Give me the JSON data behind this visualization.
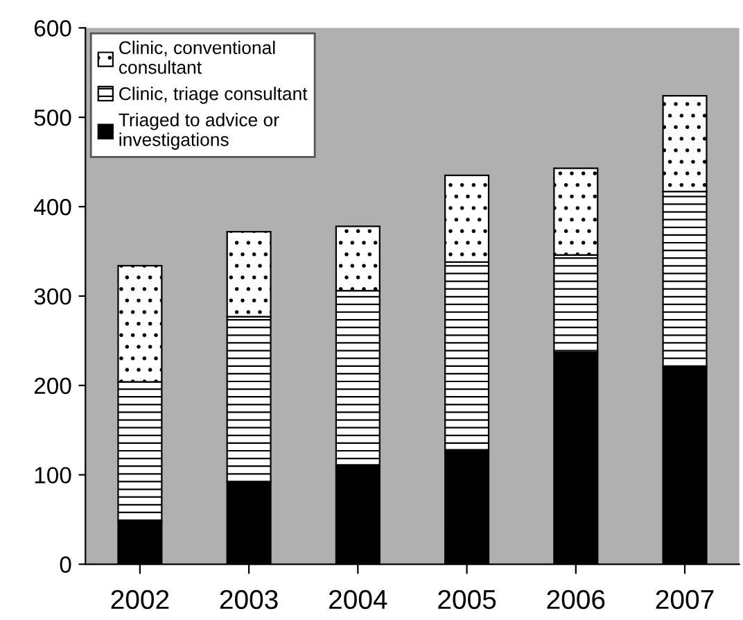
{
  "chart_data": {
    "type": "bar",
    "stacked": true,
    "categories": [
      "2002",
      "2003",
      "2004",
      "2005",
      "2006",
      "2007"
    ],
    "series": [
      {
        "name": "Triaged to advice or\ninvestigations",
        "color": "#000000",
        "values": [
          48,
          92,
          111,
          128,
          237,
          220
        ]
      },
      {
        "name": "Clinic, triage consultant",
        "color": "#ffffff",
        "values": [
          156,
          185,
          195,
          210,
          109,
          197
        ]
      },
      {
        "name": "Clinic, conventional\nconsultant",
        "color": "#ffffff",
        "values": [
          130,
          95,
          72,
          97,
          97,
          107
        ]
      }
    ],
    "ylim": [
      0,
      600
    ],
    "yticks": [
      0,
      100,
      200,
      300,
      400,
      500,
      600
    ],
    "grid": false,
    "legend": "top left"
  }
}
